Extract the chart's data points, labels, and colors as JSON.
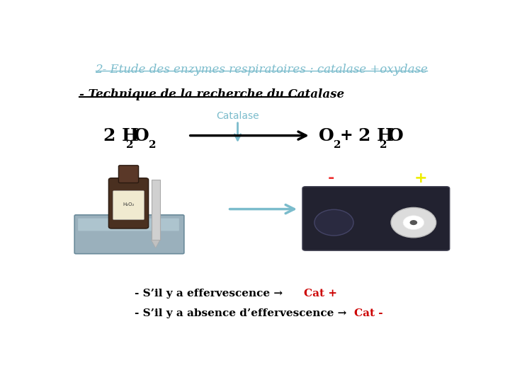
{
  "title": "2- Etude des enzymes respiratoires : catalase +oxydase",
  "title_color": "#7bbccc",
  "subtitle": "- Technique de la recherche du Catalase",
  "subtitle_color": "#000000",
  "catalase_label": "Catalase",
  "catalase_color": "#7bbccc",
  "equation_color": "#000000",
  "arrow_color": "#7bbccc",
  "bg_color": "#ffffff",
  "black_text": "#000000",
  "red_text": "#cc0000",
  "line1_black": "- S’il y a effervescence →  ",
  "line1_red": "Cat +",
  "line2_black": "- S’il y a absence d’effervescence →  ",
  "line2_red": "Cat -"
}
